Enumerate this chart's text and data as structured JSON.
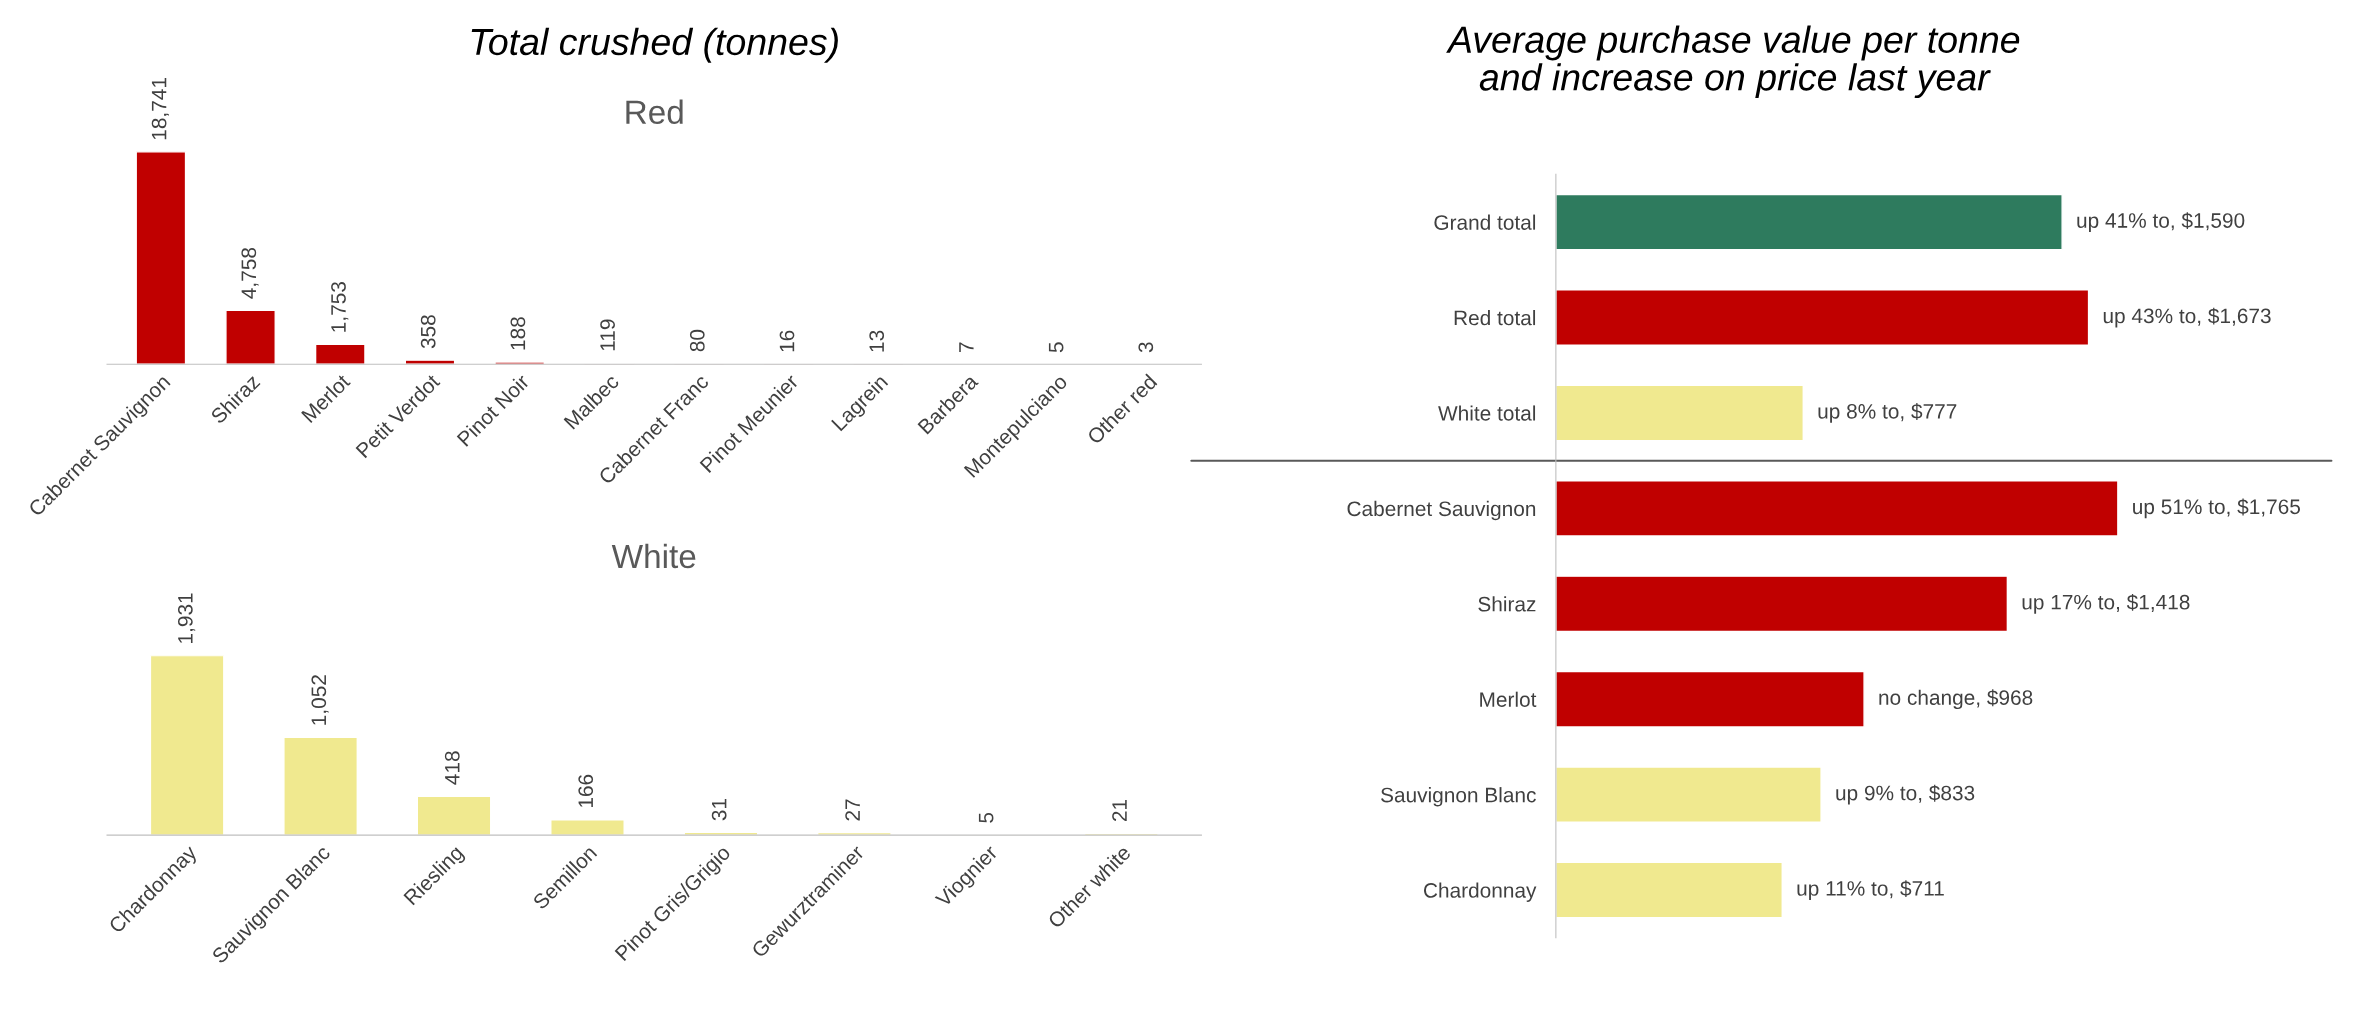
{
  "chart_data": [
    {
      "type": "bar",
      "title": "Total crushed (tonnes)",
      "subtitle": "Red",
      "categories": [
        "Cabernet Sauvignon",
        "Shiraz",
        "Merlot",
        "Petit Verdot",
        "Pinot Noir",
        "Malbec",
        "Cabernet Franc",
        "Pinot Meunier",
        "Lagrein",
        "Barbera",
        "Montepulciano",
        "Other red"
      ],
      "values": [
        18741,
        4758,
        1753,
        358,
        188,
        119,
        80,
        16,
        13,
        7,
        5,
        3
      ],
      "color": "#c00000",
      "value_labels": [
        "18,741",
        "4,758",
        "1,753",
        "358",
        "188",
        "119",
        "80",
        "16",
        "13",
        "7",
        "5",
        "3"
      ],
      "grid": false,
      "legend": false,
      "tick_labels": "x"
    },
    {
      "type": "bar",
      "title": "White",
      "categories": [
        "Chardonnay",
        "Sauvignon Blanc",
        "Riesling",
        "Semillon",
        "Pinot Gris/Grigio",
        "Gewurztraminer",
        "Viognier",
        "Other white"
      ],
      "values": [
        1931,
        1052,
        418,
        166,
        31,
        27,
        5,
        21
      ],
      "color": "#f0e98f",
      "value_labels": [
        "1,931",
        "1,052",
        "418",
        "166",
        "31",
        "27",
        "5",
        "21"
      ],
      "grid": false,
      "legend": false,
      "tick_labels": "x"
    },
    {
      "type": "bar",
      "orientation": "horizontal",
      "title": "Average purchase value per tonne\nand increase on price last year",
      "categories": [
        "Grand total",
        "Red total",
        "White total",
        "Cabernet Sauvignon",
        "Shiraz",
        "Merlot",
        "Sauvignon Blanc",
        "Chardonnay"
      ],
      "values": [
        1590,
        1673,
        777,
        1765,
        1418,
        968,
        833,
        711
      ],
      "colors": [
        "#2e7b5e",
        "#c00000",
        "#f0e98f",
        "#c00000",
        "#c00000",
        "#c00000",
        "#f0e98f",
        "#f0e98f"
      ],
      "value_labels": [
        "up 41% to, $1,590",
        "up 43% to, $1,673",
        "up 8% to, $777",
        "up 51% to, $1,765",
        "up 17% to, $1,418",
        "no change, $968",
        "up 9% to, $833",
        "up 11% to, $711"
      ],
      "grid": false,
      "legend": false,
      "tick_labels": "y"
    }
  ]
}
